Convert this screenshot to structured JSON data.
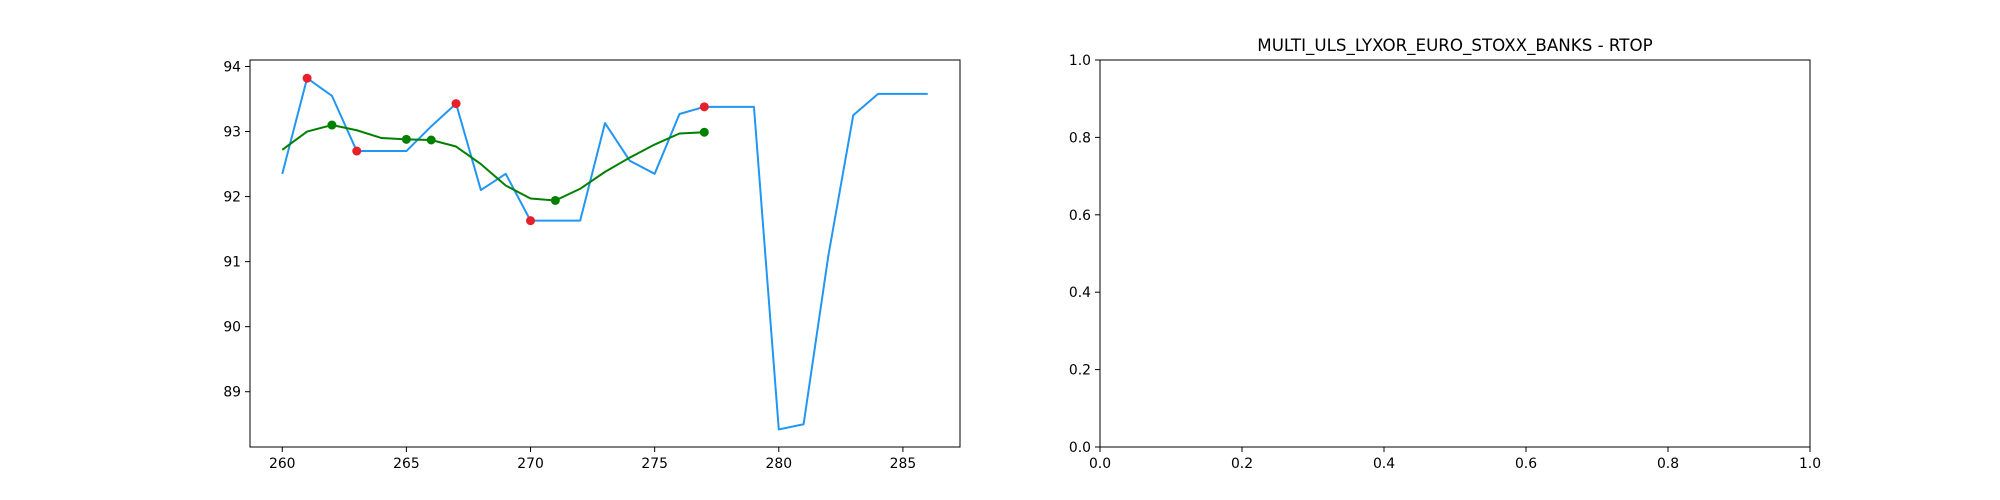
{
  "chart_data": [
    {
      "type": "line",
      "title": "",
      "xlabel": "",
      "ylabel": "",
      "xlim": [
        258.7,
        287.3
      ],
      "ylim": [
        88.15,
        94.1
      ],
      "x_ticks": [
        260,
        265,
        270,
        275,
        280,
        285
      ],
      "y_ticks": [
        89,
        90,
        91,
        92,
        93,
        94
      ],
      "grid": false,
      "series": [
        {
          "kind": "line",
          "color": "#2196f3",
          "x": [
            260,
            261,
            262,
            263,
            264,
            265,
            266,
            267,
            268,
            269,
            270,
            271,
            272,
            273,
            274,
            275,
            276,
            277,
            278,
            279,
            280,
            281,
            282,
            283,
            284,
            285,
            286
          ],
          "y": [
            92.35,
            93.82,
            93.55,
            92.7,
            92.7,
            92.7,
            93.08,
            93.43,
            92.1,
            92.35,
            91.63,
            91.63,
            91.63,
            93.13,
            92.55,
            92.35,
            93.27,
            93.38,
            93.38,
            93.38,
            88.42,
            88.5,
            91.1,
            93.25,
            93.58,
            93.58,
            93.58
          ]
        },
        {
          "kind": "line",
          "color": "#008000",
          "x": [
            260,
            261,
            262,
            263,
            264,
            265,
            266,
            267,
            268,
            269,
            270,
            271,
            272,
            273,
            274,
            275,
            276,
            277
          ],
          "y": [
            92.72,
            93.0,
            93.1,
            93.02,
            92.9,
            92.88,
            92.87,
            92.77,
            92.5,
            92.17,
            91.97,
            91.94,
            92.12,
            92.38,
            92.6,
            92.8,
            92.97,
            92.99
          ]
        },
        {
          "kind": "scatter",
          "color": "#e8202a",
          "x": [
            261,
            263,
            267,
            270,
            277
          ],
          "y": [
            93.82,
            92.7,
            93.43,
            91.63,
            93.38
          ]
        },
        {
          "kind": "scatter",
          "color": "#008000",
          "x": [
            262,
            265,
            266,
            271,
            277
          ],
          "y": [
            93.1,
            92.88,
            92.87,
            91.94,
            92.99
          ]
        }
      ]
    },
    {
      "type": "line",
      "title": "MULTI_ULS_LYXOR_EURO_STOXX_BANKS - RTOP",
      "xlabel": "",
      "ylabel": "",
      "xlim": [
        0.0,
        1.0
      ],
      "ylim": [
        0.0,
        1.0
      ],
      "x_ticks": [
        "0.0",
        "0.2",
        "0.4",
        "0.6",
        "0.8",
        "1.0"
      ],
      "y_ticks": [
        "0.0",
        "0.2",
        "0.4",
        "0.6",
        "0.8",
        "1.0"
      ],
      "grid": false,
      "series": []
    }
  ]
}
